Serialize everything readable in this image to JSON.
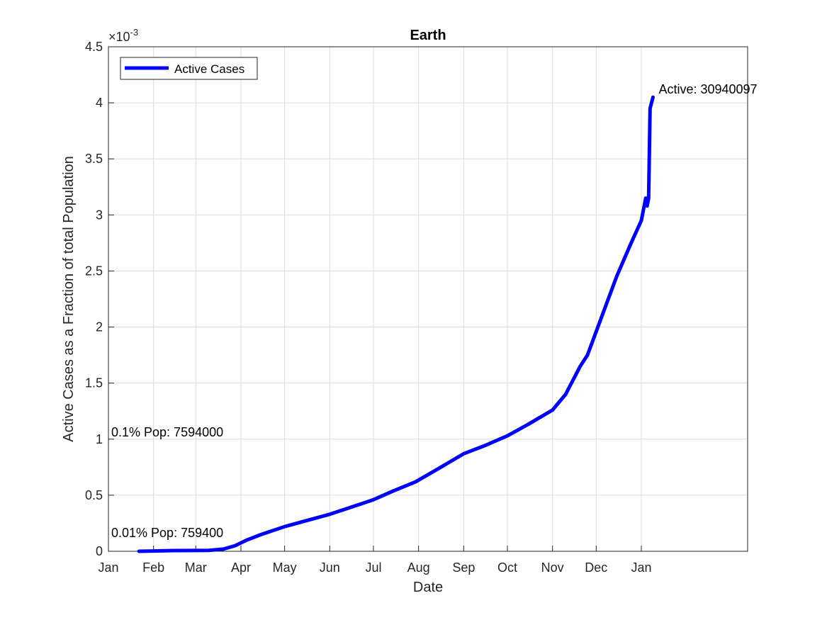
{
  "chart_data": {
    "type": "line",
    "title": "Earth",
    "xlabel": "Date",
    "ylabel": "Active Cases as a Fraction of total Population",
    "y_exponent_label": "×10",
    "y_exponent_power": "-3",
    "ylim": [
      0,
      0.0045
    ],
    "xlim": [
      "2020-01-01",
      "2021-03-15"
    ],
    "x_ticks": [
      {
        "date": "2020-01-01",
        "label": "Jan"
      },
      {
        "date": "2020-02-01",
        "label": "Feb"
      },
      {
        "date": "2020-03-01",
        "label": "Mar"
      },
      {
        "date": "2020-04-01",
        "label": "Apr"
      },
      {
        "date": "2020-05-01",
        "label": "May"
      },
      {
        "date": "2020-06-01",
        "label": "Jun"
      },
      {
        "date": "2020-07-01",
        "label": "Jul"
      },
      {
        "date": "2020-08-01",
        "label": "Aug"
      },
      {
        "date": "2020-09-01",
        "label": "Sep"
      },
      {
        "date": "2020-10-01",
        "label": "Oct"
      },
      {
        "date": "2020-11-01",
        "label": "Nov"
      },
      {
        "date": "2020-12-01",
        "label": "Dec"
      },
      {
        "date": "2021-01-01",
        "label": "Jan"
      }
    ],
    "y_ticks": [
      {
        "value": 0,
        "label": "0"
      },
      {
        "value": 0.0005,
        "label": "0.5"
      },
      {
        "value": 0.001,
        "label": "1"
      },
      {
        "value": 0.0015,
        "label": "1.5"
      },
      {
        "value": 0.002,
        "label": "2"
      },
      {
        "value": 0.0025,
        "label": "2.5"
      },
      {
        "value": 0.003,
        "label": "3"
      },
      {
        "value": 0.0035,
        "label": "3.5"
      },
      {
        "value": 0.004,
        "label": "4"
      },
      {
        "value": 0.0045,
        "label": "4.5"
      }
    ],
    "grid": true,
    "legend": {
      "position": "top-left"
    },
    "series": [
      {
        "name": "Active Cases",
        "color": "#0000ff",
        "points": [
          [
            "2020-01-22",
            0.0
          ],
          [
            "2020-02-01",
            2e-06
          ],
          [
            "2020-02-15",
            6e-06
          ],
          [
            "2020-03-01",
            7e-06
          ],
          [
            "2020-03-10",
            8e-06
          ],
          [
            "2020-03-20",
            2e-05
          ],
          [
            "2020-03-28",
            5e-05
          ],
          [
            "2020-04-05",
            0.0001
          ],
          [
            "2020-04-15",
            0.00015
          ],
          [
            "2020-05-01",
            0.00022
          ],
          [
            "2020-05-15",
            0.00027
          ],
          [
            "2020-06-01",
            0.00033
          ],
          [
            "2020-06-15",
            0.00039
          ],
          [
            "2020-07-01",
            0.00046
          ],
          [
            "2020-07-15",
            0.00054
          ],
          [
            "2020-07-30",
            0.00062
          ],
          [
            "2020-08-15",
            0.00074
          ],
          [
            "2020-09-01",
            0.00087
          ],
          [
            "2020-09-15",
            0.00094
          ],
          [
            "2020-10-01",
            0.00103
          ],
          [
            "2020-10-15",
            0.00113
          ],
          [
            "2020-11-01",
            0.00126
          ],
          [
            "2020-11-10",
            0.0014
          ],
          [
            "2020-11-20",
            0.00165
          ],
          [
            "2020-11-25",
            0.00175
          ],
          [
            "2020-12-05",
            0.0021
          ],
          [
            "2020-12-15",
            0.00245
          ],
          [
            "2020-12-25",
            0.00275
          ],
          [
            "2021-01-01",
            0.00295
          ],
          [
            "2021-01-04",
            0.00315
          ],
          [
            "2021-01-05",
            0.00308
          ],
          [
            "2021-01-06",
            0.00315
          ],
          [
            "2021-01-07",
            0.00395
          ],
          [
            "2021-01-09",
            0.00405
          ]
        ]
      }
    ],
    "annotations": [
      {
        "text": "Active: 30940097",
        "date": "2021-01-09",
        "value": 0.00405
      },
      {
        "text": "0.1% Pop: 7594000",
        "date": "2020-01-01",
        "value": 0.001
      },
      {
        "text": "0.01% Pop: 759400",
        "date": "2020-01-01",
        "value": 0.0001
      }
    ]
  }
}
